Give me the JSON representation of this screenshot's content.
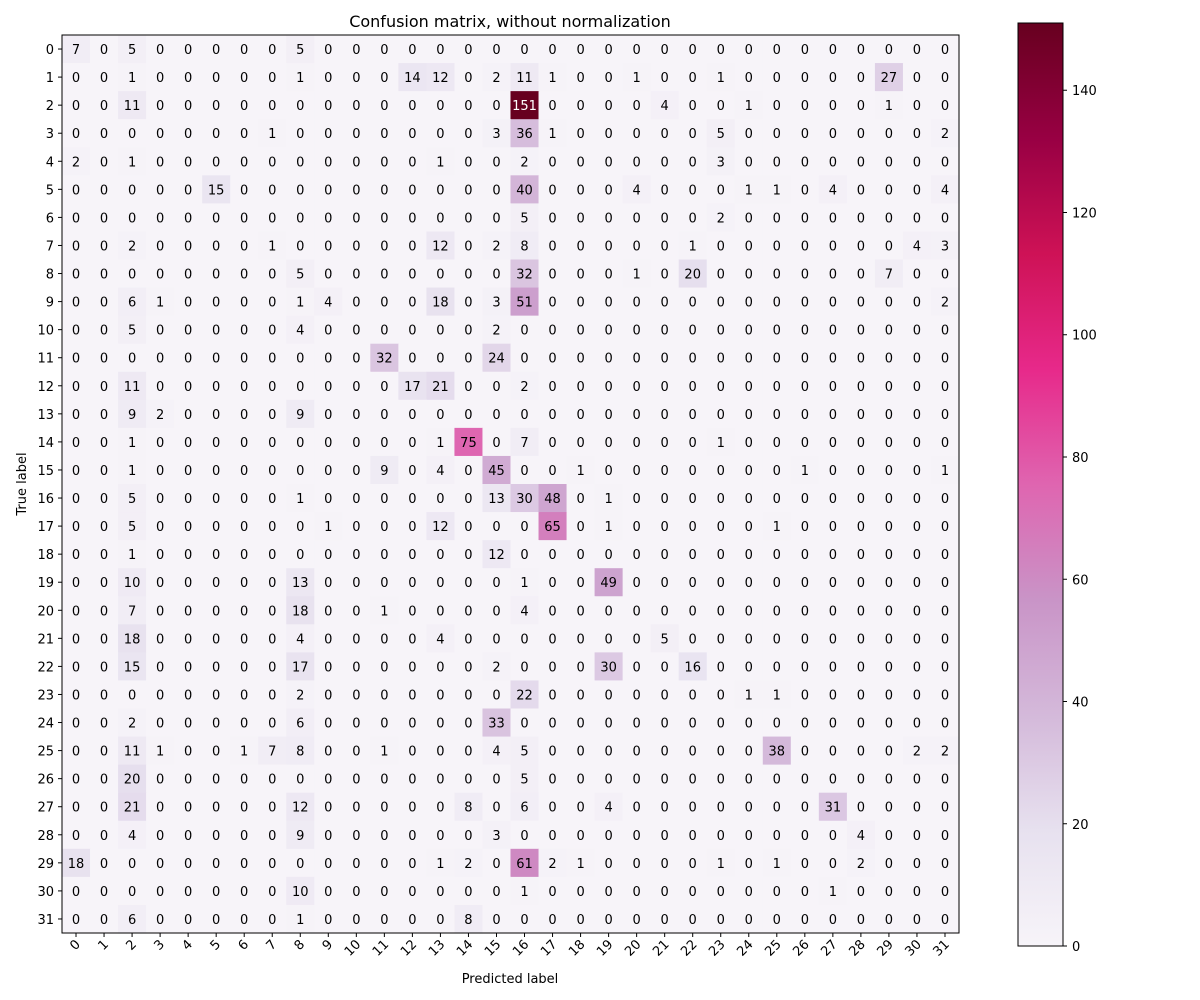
{
  "chart_data": {
    "type": "heatmap",
    "title": "Confusion matrix, without normalization",
    "xlabel": "Predicted label",
    "ylabel": "True label",
    "x_categories": [
      "0",
      "1",
      "2",
      "3",
      "4",
      "5",
      "6",
      "7",
      "8",
      "9",
      "10",
      "11",
      "12",
      "13",
      "14",
      "15",
      "16",
      "17",
      "18",
      "19",
      "20",
      "21",
      "22",
      "23",
      "24",
      "25",
      "26",
      "27",
      "28",
      "29",
      "30",
      "31"
    ],
    "y_categories": [
      "0",
      "1",
      "2",
      "3",
      "4",
      "5",
      "6",
      "7",
      "8",
      "9",
      "10",
      "11",
      "12",
      "13",
      "14",
      "15",
      "16",
      "17",
      "18",
      "19",
      "20",
      "21",
      "22",
      "23",
      "24",
      "25",
      "26",
      "27",
      "28",
      "29",
      "30",
      "31"
    ],
    "matrix": [
      [
        7,
        0,
        5,
        0,
        0,
        0,
        0,
        0,
        5,
        0,
        0,
        0,
        0,
        0,
        0,
        0,
        0,
        0,
        0,
        0,
        0,
        0,
        0,
        0,
        0,
        0,
        0,
        0,
        0,
        0,
        0,
        0
      ],
      [
        0,
        0,
        1,
        0,
        0,
        0,
        0,
        0,
        1,
        0,
        0,
        0,
        14,
        12,
        0,
        2,
        11,
        1,
        0,
        0,
        1,
        0,
        0,
        1,
        0,
        0,
        0,
        0,
        0,
        27,
        0,
        0
      ],
      [
        0,
        0,
        11,
        0,
        0,
        0,
        0,
        0,
        0,
        0,
        0,
        0,
        0,
        0,
        0,
        0,
        151,
        0,
        0,
        0,
        0,
        4,
        0,
        0,
        1,
        0,
        0,
        0,
        0,
        1,
        0,
        0
      ],
      [
        0,
        0,
        0,
        0,
        0,
        0,
        0,
        1,
        0,
        0,
        0,
        0,
        0,
        0,
        0,
        3,
        36,
        1,
        0,
        0,
        0,
        0,
        0,
        5,
        0,
        0,
        0,
        0,
        0,
        0,
        0,
        2
      ],
      [
        2,
        0,
        1,
        0,
        0,
        0,
        0,
        0,
        0,
        0,
        0,
        0,
        0,
        1,
        0,
        0,
        2,
        0,
        0,
        0,
        0,
        0,
        0,
        3,
        0,
        0,
        0,
        0,
        0,
        0,
        0,
        0
      ],
      [
        0,
        0,
        0,
        0,
        0,
        15,
        0,
        0,
        0,
        0,
        0,
        0,
        0,
        0,
        0,
        0,
        40,
        0,
        0,
        0,
        4,
        0,
        0,
        0,
        1,
        1,
        0,
        4,
        0,
        0,
        0,
        4
      ],
      [
        0,
        0,
        0,
        0,
        0,
        0,
        0,
        0,
        0,
        0,
        0,
        0,
        0,
        0,
        0,
        0,
        5,
        0,
        0,
        0,
        0,
        0,
        0,
        2,
        0,
        0,
        0,
        0,
        0,
        0,
        0,
        0
      ],
      [
        0,
        0,
        2,
        0,
        0,
        0,
        0,
        1,
        0,
        0,
        0,
        0,
        0,
        12,
        0,
        2,
        8,
        0,
        0,
        0,
        0,
        0,
        1,
        0,
        0,
        0,
        0,
        0,
        0,
        0,
        4,
        3
      ],
      [
        0,
        0,
        0,
        0,
        0,
        0,
        0,
        0,
        5,
        0,
        0,
        0,
        0,
        0,
        0,
        0,
        32,
        0,
        0,
        0,
        1,
        0,
        20,
        0,
        0,
        0,
        0,
        0,
        0,
        7,
        0,
        0
      ],
      [
        0,
        0,
        6,
        1,
        0,
        0,
        0,
        0,
        1,
        4,
        0,
        0,
        0,
        18,
        0,
        3,
        51,
        0,
        0,
        0,
        0,
        0,
        0,
        0,
        0,
        0,
        0,
        0,
        0,
        0,
        0,
        2
      ],
      [
        0,
        0,
        5,
        0,
        0,
        0,
        0,
        0,
        4,
        0,
        0,
        0,
        0,
        0,
        0,
        2,
        0,
        0,
        0,
        0,
        0,
        0,
        0,
        0,
        0,
        0,
        0,
        0,
        0,
        0,
        0,
        0
      ],
      [
        0,
        0,
        0,
        0,
        0,
        0,
        0,
        0,
        0,
        0,
        0,
        32,
        0,
        0,
        0,
        24,
        0,
        0,
        0,
        0,
        0,
        0,
        0,
        0,
        0,
        0,
        0,
        0,
        0,
        0,
        0,
        0
      ],
      [
        0,
        0,
        11,
        0,
        0,
        0,
        0,
        0,
        0,
        0,
        0,
        0,
        17,
        21,
        0,
        0,
        2,
        0,
        0,
        0,
        0,
        0,
        0,
        0,
        0,
        0,
        0,
        0,
        0,
        0,
        0,
        0
      ],
      [
        0,
        0,
        9,
        2,
        0,
        0,
        0,
        0,
        9,
        0,
        0,
        0,
        0,
        0,
        0,
        0,
        0,
        0,
        0,
        0,
        0,
        0,
        0,
        0,
        0,
        0,
        0,
        0,
        0,
        0,
        0,
        0
      ],
      [
        0,
        0,
        1,
        0,
        0,
        0,
        0,
        0,
        0,
        0,
        0,
        0,
        0,
        1,
        75,
        0,
        7,
        0,
        0,
        0,
        0,
        0,
        0,
        1,
        0,
        0,
        0,
        0,
        0,
        0,
        0,
        0
      ],
      [
        0,
        0,
        1,
        0,
        0,
        0,
        0,
        0,
        0,
        0,
        0,
        9,
        0,
        4,
        0,
        45,
        0,
        0,
        1,
        0,
        0,
        0,
        0,
        0,
        0,
        0,
        1,
        0,
        0,
        0,
        0,
        1
      ],
      [
        0,
        0,
        5,
        0,
        0,
        0,
        0,
        0,
        1,
        0,
        0,
        0,
        0,
        0,
        0,
        13,
        30,
        48,
        0,
        1,
        0,
        0,
        0,
        0,
        0,
        0,
        0,
        0,
        0,
        0,
        0,
        0
      ],
      [
        0,
        0,
        5,
        0,
        0,
        0,
        0,
        0,
        0,
        1,
        0,
        0,
        0,
        12,
        0,
        0,
        0,
        65,
        0,
        1,
        0,
        0,
        0,
        0,
        0,
        1,
        0,
        0,
        0,
        0,
        0,
        0
      ],
      [
        0,
        0,
        1,
        0,
        0,
        0,
        0,
        0,
        0,
        0,
        0,
        0,
        0,
        0,
        0,
        12,
        0,
        0,
        0,
        0,
        0,
        0,
        0,
        0,
        0,
        0,
        0,
        0,
        0,
        0,
        0,
        0
      ],
      [
        0,
        0,
        10,
        0,
        0,
        0,
        0,
        0,
        13,
        0,
        0,
        0,
        0,
        0,
        0,
        0,
        1,
        0,
        0,
        49,
        0,
        0,
        0,
        0,
        0,
        0,
        0,
        0,
        0,
        0,
        0,
        0
      ],
      [
        0,
        0,
        7,
        0,
        0,
        0,
        0,
        0,
        18,
        0,
        0,
        1,
        0,
        0,
        0,
        0,
        4,
        0,
        0,
        0,
        0,
        0,
        0,
        0,
        0,
        0,
        0,
        0,
        0,
        0,
        0,
        0
      ],
      [
        0,
        0,
        18,
        0,
        0,
        0,
        0,
        0,
        4,
        0,
        0,
        0,
        0,
        4,
        0,
        0,
        0,
        0,
        0,
        0,
        0,
        5,
        0,
        0,
        0,
        0,
        0,
        0,
        0,
        0,
        0,
        0
      ],
      [
        0,
        0,
        15,
        0,
        0,
        0,
        0,
        0,
        17,
        0,
        0,
        0,
        0,
        0,
        0,
        2,
        0,
        0,
        0,
        30,
        0,
        0,
        16,
        0,
        0,
        0,
        0,
        0,
        0,
        0,
        0,
        0
      ],
      [
        0,
        0,
        0,
        0,
        0,
        0,
        0,
        0,
        2,
        0,
        0,
        0,
        0,
        0,
        0,
        0,
        22,
        0,
        0,
        0,
        0,
        0,
        0,
        0,
        1,
        1,
        0,
        0,
        0,
        0,
        0,
        0
      ],
      [
        0,
        0,
        2,
        0,
        0,
        0,
        0,
        0,
        6,
        0,
        0,
        0,
        0,
        0,
        0,
        33,
        0,
        0,
        0,
        0,
        0,
        0,
        0,
        0,
        0,
        0,
        0,
        0,
        0,
        0,
        0,
        0
      ],
      [
        0,
        0,
        11,
        1,
        0,
        0,
        1,
        7,
        8,
        0,
        0,
        1,
        0,
        0,
        0,
        4,
        5,
        0,
        0,
        0,
        0,
        0,
        0,
        0,
        0,
        38,
        0,
        0,
        0,
        0,
        2,
        2
      ],
      [
        0,
        0,
        20,
        0,
        0,
        0,
        0,
        0,
        0,
        0,
        0,
        0,
        0,
        0,
        0,
        0,
        5,
        0,
        0,
        0,
        0,
        0,
        0,
        0,
        0,
        0,
        0,
        0,
        0,
        0,
        0,
        0
      ],
      [
        0,
        0,
        21,
        0,
        0,
        0,
        0,
        0,
        12,
        0,
        0,
        0,
        0,
        0,
        8,
        0,
        6,
        0,
        0,
        4,
        0,
        0,
        0,
        0,
        0,
        0,
        0,
        31,
        0,
        0,
        0,
        0
      ],
      [
        0,
        0,
        4,
        0,
        0,
        0,
        0,
        0,
        9,
        0,
        0,
        0,
        0,
        0,
        0,
        3,
        0,
        0,
        0,
        0,
        0,
        0,
        0,
        0,
        0,
        0,
        0,
        0,
        4,
        0,
        0,
        0
      ],
      [
        18,
        0,
        0,
        0,
        0,
        0,
        0,
        0,
        0,
        0,
        0,
        0,
        0,
        1,
        2,
        0,
        61,
        2,
        1,
        0,
        0,
        0,
        0,
        1,
        0,
        1,
        0,
        0,
        2,
        0,
        0,
        0
      ],
      [
        0,
        0,
        0,
        0,
        0,
        0,
        0,
        0,
        10,
        0,
        0,
        0,
        0,
        0,
        0,
        0,
        1,
        0,
        0,
        0,
        0,
        0,
        0,
        0,
        0,
        0,
        0,
        1,
        0,
        0,
        0,
        0
      ],
      [
        0,
        0,
        6,
        0,
        0,
        0,
        0,
        0,
        1,
        0,
        0,
        0,
        0,
        0,
        8,
        0,
        0,
        0,
        0,
        0,
        0,
        0,
        0,
        0,
        0,
        0,
        0,
        0,
        0,
        0,
        0,
        0
      ]
    ],
    "colorbar": {
      "range": [
        0,
        151
      ],
      "ticks": [
        0,
        20,
        40,
        60,
        80,
        100,
        120,
        140
      ],
      "colormap": "PuRd"
    },
    "grid": false,
    "legend": "colorbar-right"
  }
}
